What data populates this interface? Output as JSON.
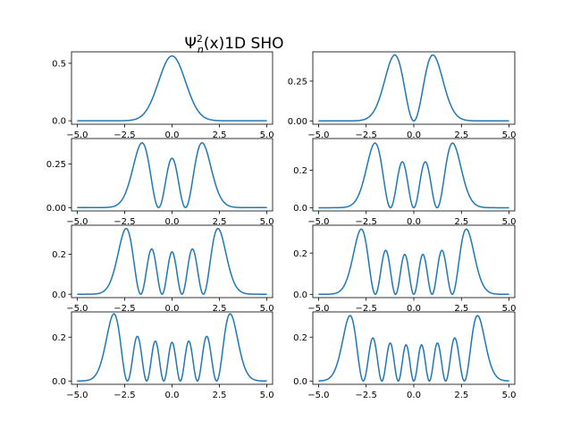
{
  "chart_data": {
    "type": "line",
    "title_prefix": "Ψ",
    "title_sup": "2",
    "title_sub": "n",
    "title_suffix": "(x)1D SHO",
    "xlim": [
      -5.3,
      5.3
    ],
    "x_ticks": [
      -5.0,
      -2.5,
      0.0,
      2.5,
      5.0
    ],
    "x_tick_labels": [
      "−5.0",
      "−2.5",
      "0.0",
      "2.5",
      "5.0"
    ],
    "subplots": [
      {
        "n": 0,
        "ylim": [
          -0.03,
          0.6
        ],
        "y_ticks": [
          0.0,
          0.5
        ],
        "y_tick_labels": [
          "0.0",
          "0.5"
        ]
      },
      {
        "n": 1,
        "ylim": [
          -0.021,
          0.435
        ],
        "y_ticks": [
          0.0,
          0.25
        ],
        "y_tick_labels": [
          "0.00",
          "0.25"
        ]
      },
      {
        "n": 2,
        "ylim": [
          -0.019,
          0.395
        ],
        "y_ticks": [
          0.0,
          0.25
        ],
        "y_tick_labels": [
          "0.00",
          "0.25"
        ]
      },
      {
        "n": 3,
        "ylim": [
          -0.017,
          0.37
        ],
        "y_ticks": [
          0.0,
          0.2
        ],
        "y_tick_labels": [
          "0.0",
          "0.2"
        ]
      },
      {
        "n": 4,
        "ylim": [
          -0.017,
          0.345
        ],
        "y_ticks": [
          0.0,
          0.2
        ],
        "y_tick_labels": [
          "0.0",
          "0.2"
        ]
      },
      {
        "n": 5,
        "ylim": [
          -0.016,
          0.335
        ],
        "y_ticks": [
          0.0,
          0.2
        ],
        "y_tick_labels": [
          "0.0",
          "0.2"
        ]
      },
      {
        "n": 6,
        "ylim": [
          -0.015,
          0.315
        ],
        "y_ticks": [
          0.0,
          0.2
        ],
        "y_tick_labels": [
          "0.0",
          "0.2"
        ]
      },
      {
        "n": 7,
        "ylim": [
          -0.015,
          0.315
        ],
        "y_ticks": [
          0.0,
          0.2
        ],
        "y_tick_labels": [
          "0.0",
          "0.2"
        ]
      }
    ],
    "series_color": "#1f77b4",
    "x_range": [
      -5.0,
      5.0
    ],
    "samples": 400
  }
}
